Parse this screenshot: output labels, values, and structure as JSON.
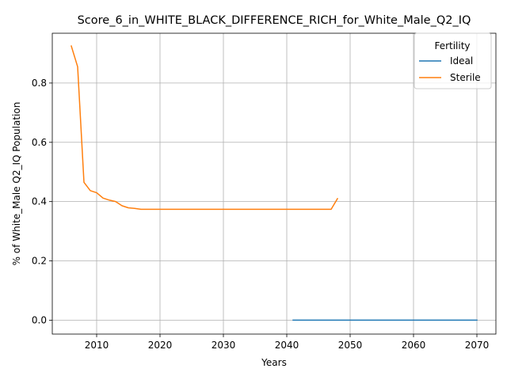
{
  "chart_data": {
    "type": "line",
    "title": "Score_6_in_WHITE_BLACK_DIFFERENCE_RICH_for_White_Male_Q2_IQ",
    "xlabel": "Years",
    "ylabel": "% of White_Male Q2_IQ Population",
    "xlim": [
      2003,
      2073
    ],
    "ylim": [
      -0.047,
      0.968
    ],
    "xticks": [
      2010,
      2020,
      2030,
      2040,
      2050,
      2060,
      2070
    ],
    "yticks": [
      0.0,
      0.2,
      0.4,
      0.6,
      0.8
    ],
    "xtick_labels": [
      "2010",
      "2020",
      "2030",
      "2040",
      "2050",
      "2060",
      "2070"
    ],
    "ytick_labels": [
      "0.0",
      "0.2",
      "0.4",
      "0.6",
      "0.8"
    ],
    "grid": true,
    "legend": {
      "title": "Fertility",
      "placement": "top-right"
    },
    "series": [
      {
        "name": "Ideal",
        "color": "#1f77b4",
        "x": [
          2041,
          2045,
          2050,
          2055,
          2060,
          2065,
          2070
        ],
        "y": [
          0,
          0,
          0,
          0,
          0,
          0,
          0
        ]
      },
      {
        "name": "Sterile",
        "color": "#ff7f0e",
        "x": [
          2006,
          2007,
          2008,
          2009,
          2010,
          2011,
          2012,
          2013,
          2014,
          2015,
          2016,
          2017,
          2018,
          2020,
          2025,
          2030,
          2035,
          2040,
          2045,
          2047,
          2048
        ],
        "y": [
          0.925,
          0.855,
          0.465,
          0.437,
          0.43,
          0.412,
          0.405,
          0.4,
          0.386,
          0.379,
          0.377,
          0.374,
          0.374,
          0.374,
          0.374,
          0.374,
          0.374,
          0.374,
          0.374,
          0.374,
          0.41
        ]
      }
    ]
  }
}
